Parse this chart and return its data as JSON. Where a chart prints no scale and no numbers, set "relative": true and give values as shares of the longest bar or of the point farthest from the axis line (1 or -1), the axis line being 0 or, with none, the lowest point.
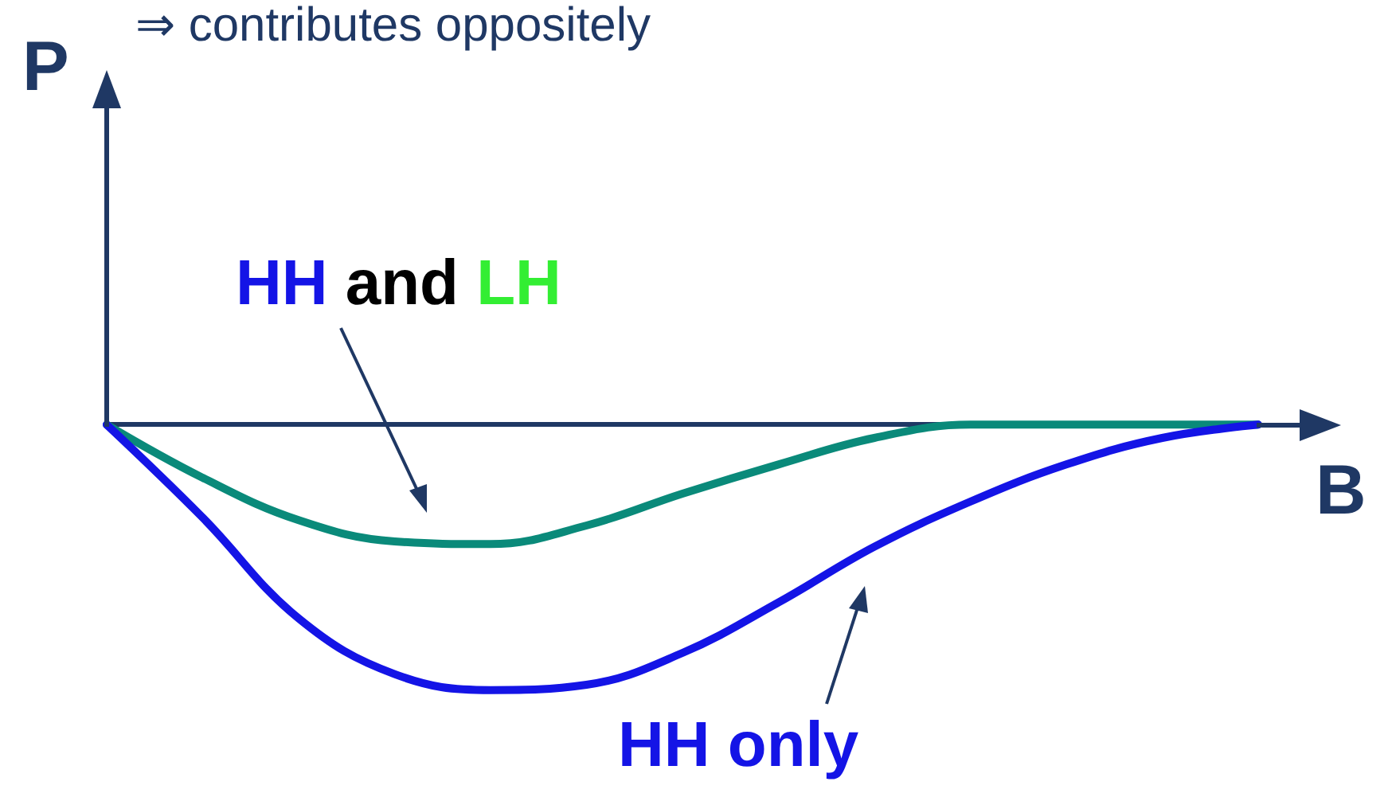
{
  "chart_data": {
    "type": "line",
    "title": "⇒ contributes oppositely",
    "xlabel": "B",
    "ylabel": "P",
    "relative": true,
    "categories": [
      null,
      null,
      null,
      null,
      null,
      null,
      null,
      null,
      null,
      null,
      null,
      null,
      null
    ],
    "series": [
      {
        "color": "#0a8a7a",
        "values": [
          0,
          -0.2,
          -0.36,
          -0.44,
          -0.45,
          -0.38,
          -0.26,
          -0.15,
          -0.05,
          0,
          0,
          0,
          0
        ]
      },
      {
        "color": "#1414e6",
        "values": [
          0,
          -0.35,
          -0.73,
          -0.94,
          -1,
          -0.98,
          -0.86,
          -0.67,
          -0.46,
          -0.29,
          -0.15,
          -0.05,
          0
        ]
      }
    ],
    "annotations": [
      "HH and LH",
      "HH only"
    ],
    "marker": "none",
    "line_style": "solid",
    "grid": false
  }
}
